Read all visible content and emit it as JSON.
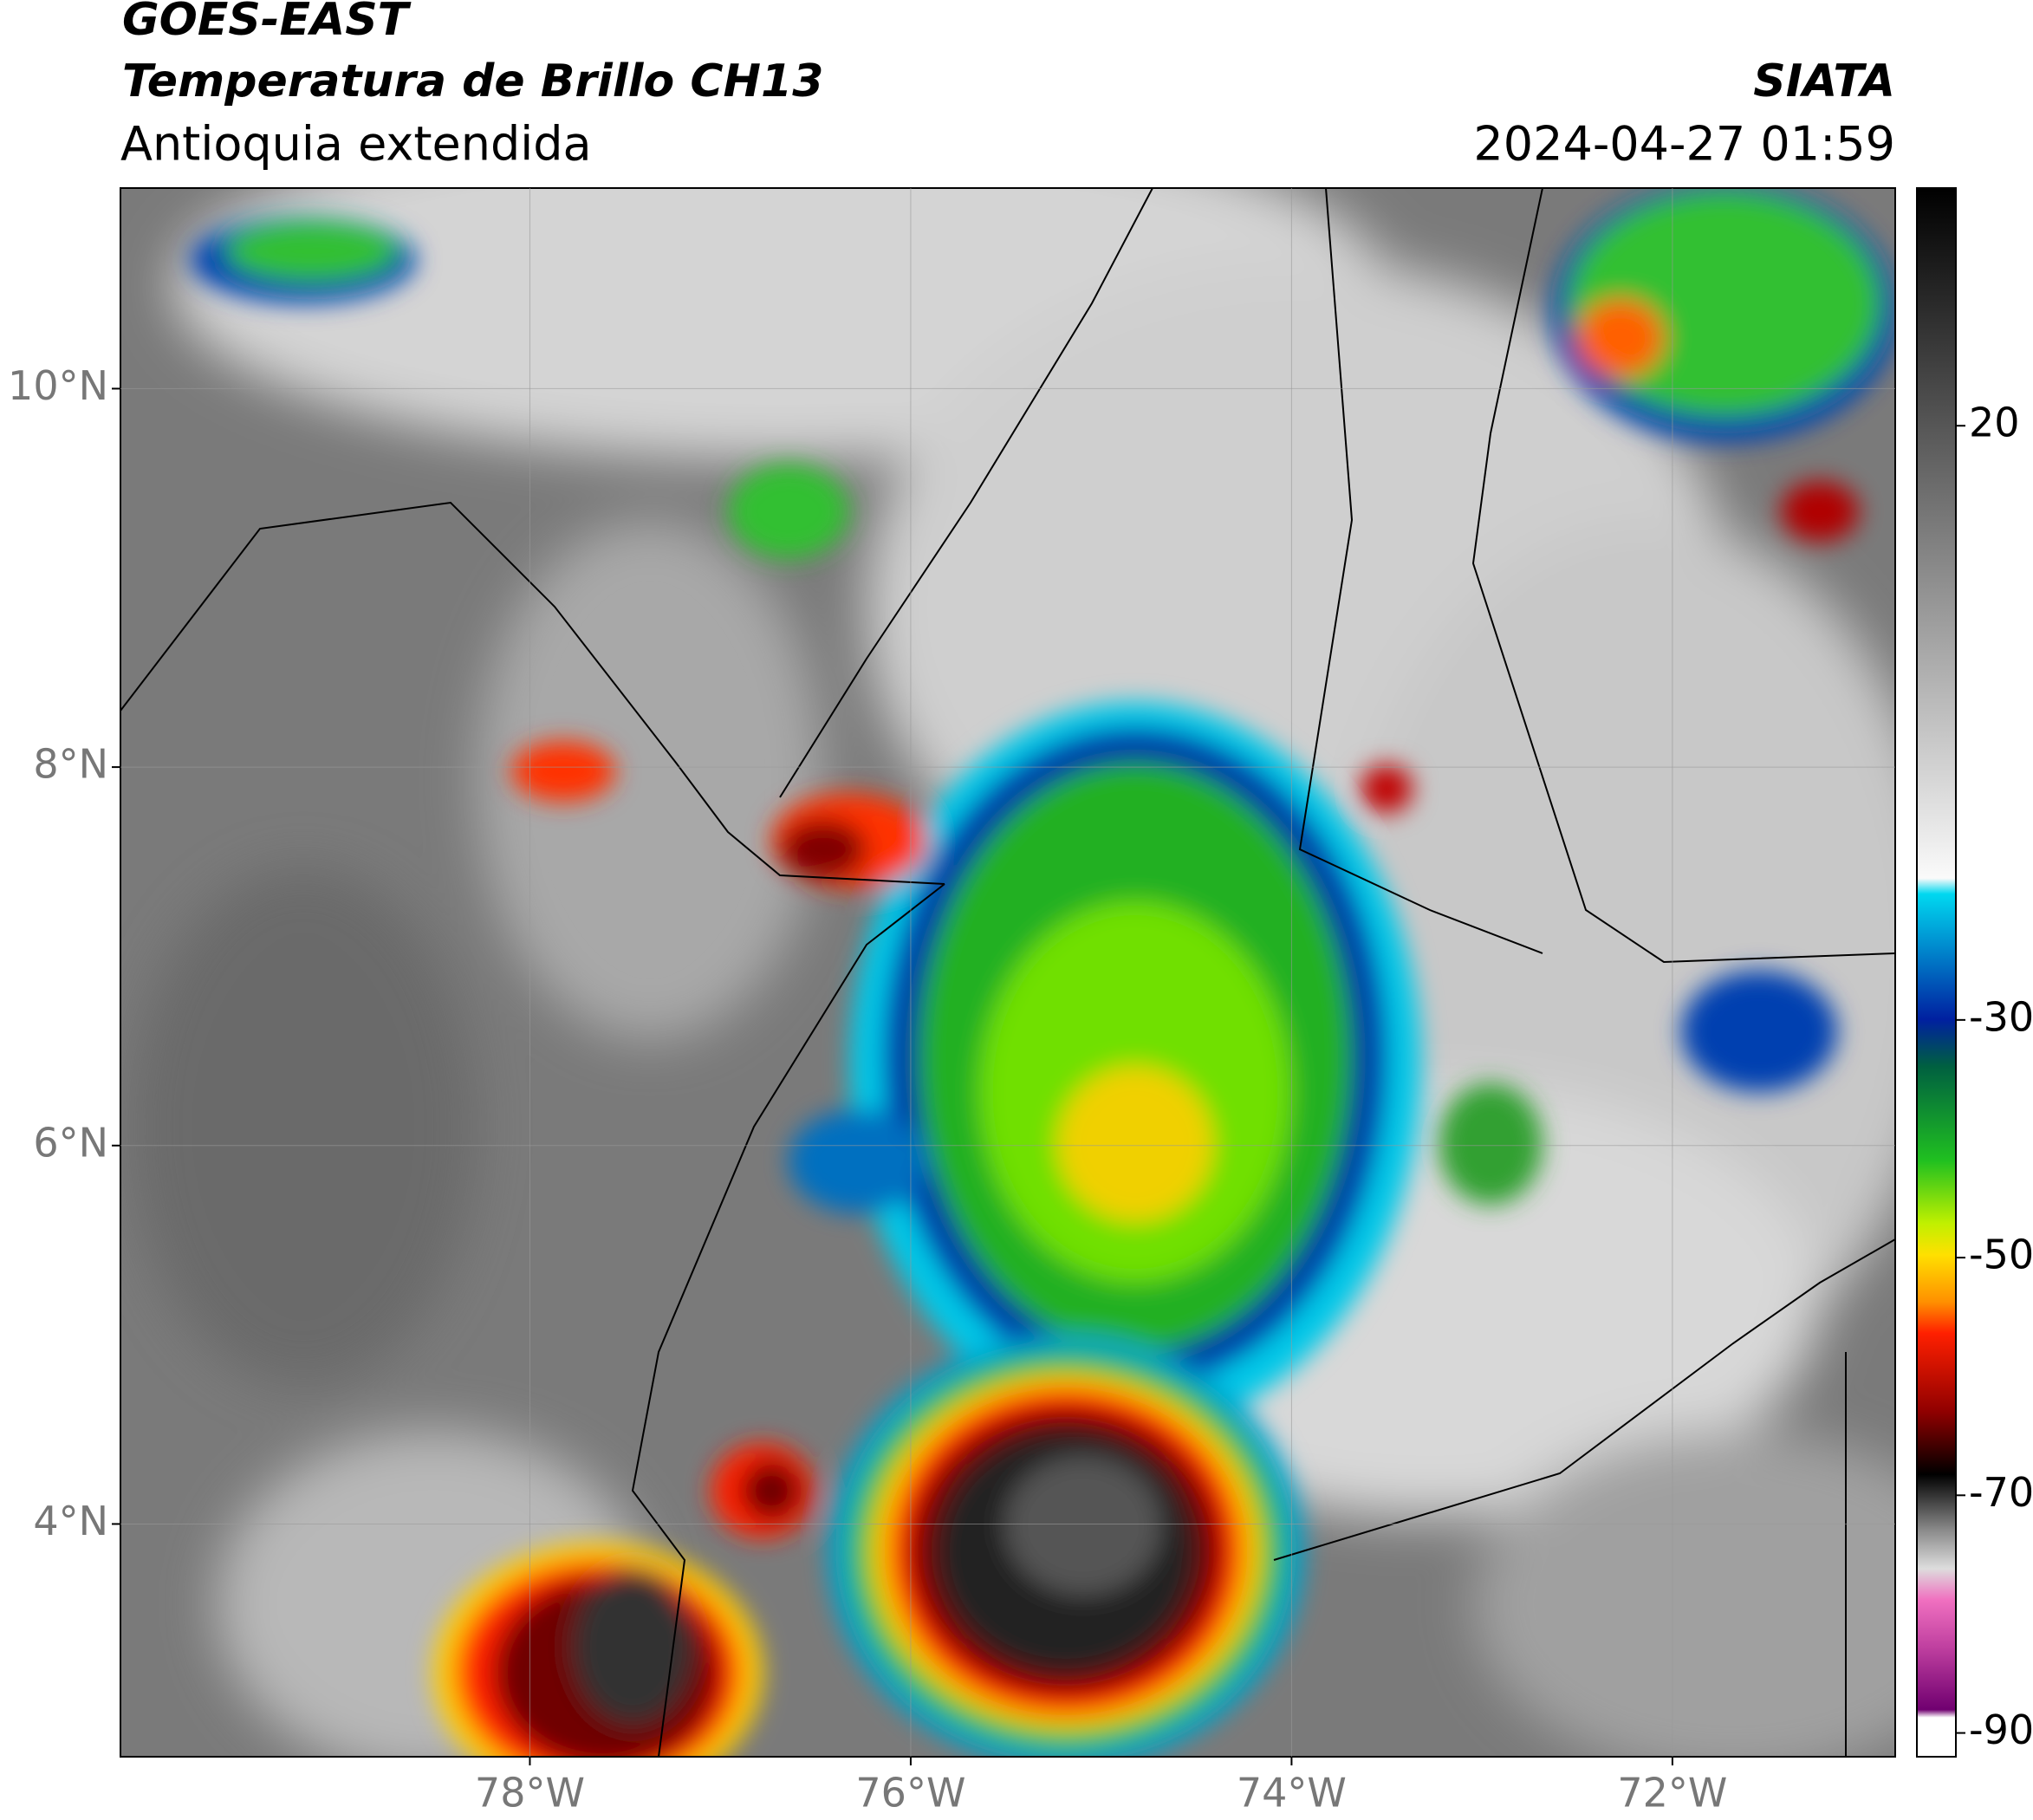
{
  "header": {
    "satellite": "GOES-EAST",
    "product": "Temperatura de Brillo CH13",
    "region": "Antioquia extendida",
    "source": "SIATA",
    "datetime": "2024-04-27 01:59"
  },
  "map": {
    "type": "map",
    "xlim": [
      -80.15,
      -70.83
    ],
    "ylim": [
      2.77,
      11.06
    ],
    "xticks": [
      {
        "value": -78,
        "label": "78°W"
      },
      {
        "value": -76,
        "label": "76°W"
      },
      {
        "value": -74,
        "label": "74°W"
      },
      {
        "value": -72,
        "label": "72°W"
      }
    ],
    "yticks": [
      {
        "value": 10,
        "label": "10°N"
      },
      {
        "value": 8,
        "label": "8°N"
      },
      {
        "value": 6,
        "label": "6°N"
      },
      {
        "value": 4,
        "label": "4°N"
      }
    ],
    "grid": true
  },
  "colorbar": {
    "clim": [
      -92,
      40
    ],
    "ticks": [
      20,
      -30,
      -50,
      -70,
      -90
    ]
  }
}
